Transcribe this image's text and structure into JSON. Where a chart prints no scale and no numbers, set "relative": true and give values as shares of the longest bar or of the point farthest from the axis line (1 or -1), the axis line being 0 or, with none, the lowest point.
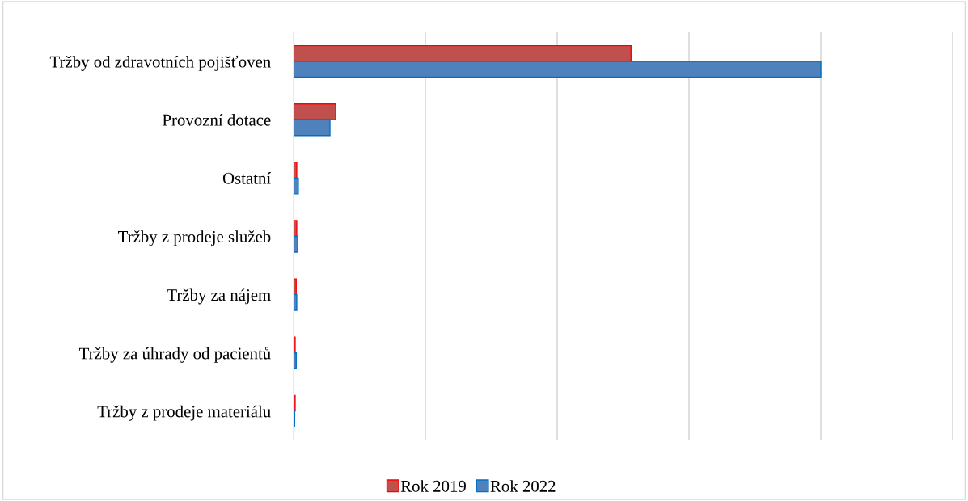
{
  "chart_data": {
    "type": "bar",
    "orientation": "horizontal",
    "relative": true,
    "grid": "x",
    "legend": "bottom",
    "categories": [
      "Tržby od zdravotních pojišťoven",
      "Provozní dotace",
      "Ostatní",
      "Tržby z prodeje služeb",
      "Tržby za nájem",
      "Tržby za úhrady od pacientů",
      "Tržby z prodeje materiálu"
    ],
    "series": [
      {
        "name": "Rok 2019",
        "color": "#c0504d",
        "values": [
          0.64,
          0.08,
          0.006,
          0.006,
          0.005,
          0.003,
          0.003
        ]
      },
      {
        "name": "Rok 2022",
        "color": "#4f81bd",
        "values": [
          1,
          0.069,
          0.009,
          0.008,
          0.006,
          0.005,
          0.002
        ]
      }
    ]
  }
}
